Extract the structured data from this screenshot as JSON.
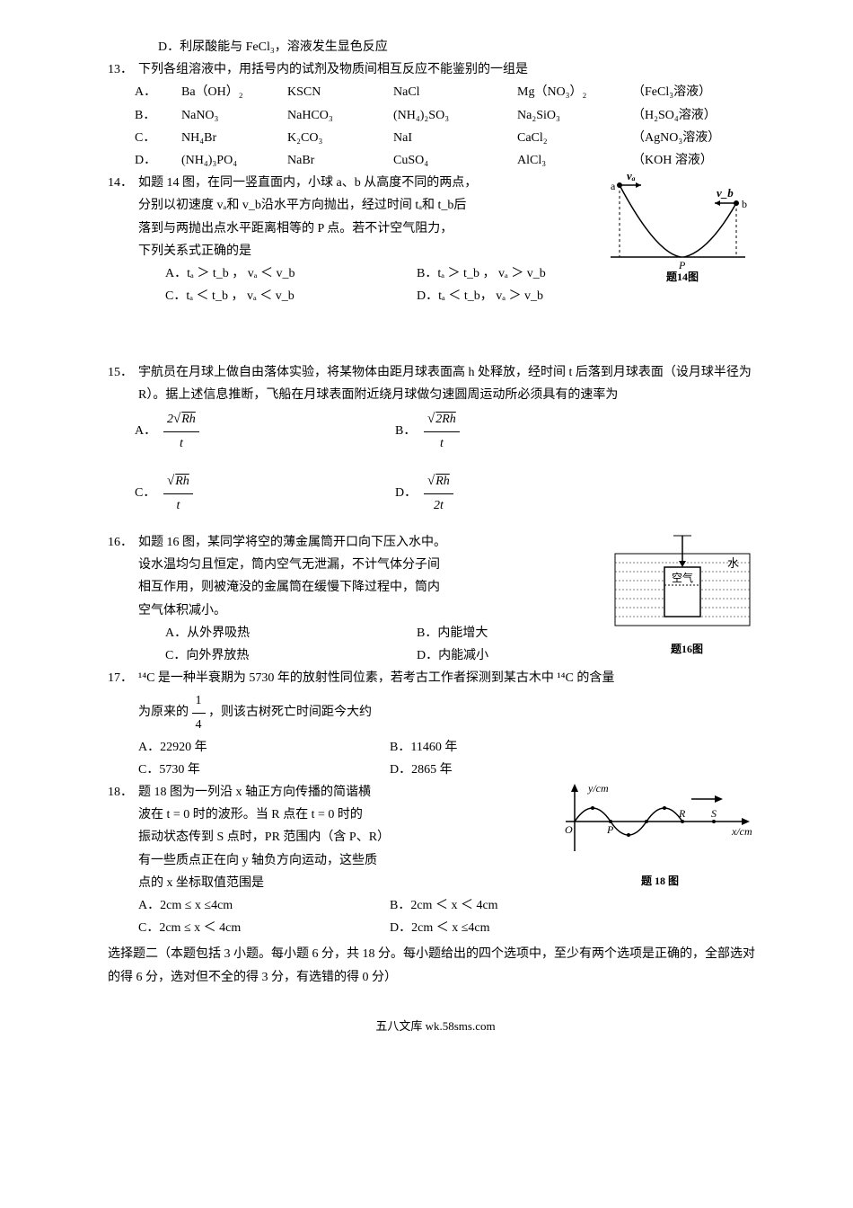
{
  "q12_D": "D．利尿酸能与 FeCl₃，溶液发生显色反应",
  "q13": {
    "num": "13．",
    "stem": "下列各组溶液中，用括号内的试剂及物质间相互反应不能鉴别的一组是",
    "rows": [
      {
        "label": "A．",
        "c1": "Ba（OH）₂",
        "c2": "KSCN",
        "c3": "NaCl",
        "c4": "Mg（NO₃）₂",
        "c5": "（FeCl₃溶液）"
      },
      {
        "label": "B．",
        "c1": "NaNO₃",
        "c2": "NaHCO₃",
        "c3": "(NH₄)₂SO₃",
        "c4": "Na₂SiO₃",
        "c5": "（H₂SO₄溶液）"
      },
      {
        "label": "C．",
        "c1": "NH₄Br",
        "c2": "K₂CO₃",
        "c3": "NaI",
        "c4": "CaCl₂",
        "c5": "（AgNO₃溶液）"
      },
      {
        "label": "D．",
        "c1": "(NH₄)₃PO₄",
        "c2": "NaBr",
        "c3": "CuSO₄",
        "c4": "AlCl₃",
        "c5": "（KOH 溶液）"
      }
    ]
  },
  "q14": {
    "num": "14．",
    "lines": [
      "如题 14 图，在同一竖直面内，小球 a、b 从高度不同的两点，",
      "分别以初速度 vₐ和 v_b沿水平方向抛出，经过时间 tₐ和 t_b后",
      "落到与两抛出点水平距离相等的 P 点。若不计空气阻力，",
      "下列关系式正确的是"
    ],
    "opts": {
      "A": "A．tₐ ＞ t_b ， vₐ ＜ v_b",
      "B": "B．tₐ ＞ t_b ， vₐ ＞ v_b",
      "C": "C．tₐ ＜ t_b ， vₐ ＜ v_b",
      "D": "D．tₐ ＜ t_b， vₐ ＞ v_b"
    },
    "fig_label": "题14图",
    "fig": {
      "va": "vₐ",
      "vb": "v_b",
      "a": "a",
      "b": "b",
      "P": "P"
    }
  },
  "q15": {
    "num": "15．",
    "stem": "宇航员在月球上做自由落体实验，将某物体由距月球表面高 h 处释放，经时间 t 后落到月球表面（设月球半径为 R）。据上述信息推断，飞船在月球表面附近绕月球做匀速圆周运动所必须具有的速率为",
    "opts": {
      "A": {
        "lbl": "A．",
        "num": "2√(Rh)",
        "den": "t",
        "num_html": "2<span class='root'>√</span><span class='sqrt'>Rh</span>"
      },
      "B": {
        "lbl": "B．",
        "num": "√(2Rh)",
        "den": "t",
        "num_html": "<span class='root'>√</span><span class='sqrt'>2Rh</span>"
      },
      "C": {
        "lbl": "C．",
        "num": "√(Rh)",
        "den": "t",
        "num_html": "<span class='root'>√</span><span class='sqrt'>Rh</span>"
      },
      "D": {
        "lbl": "D．",
        "num": "√(Rh)",
        "den": "2t",
        "num_html": "<span class='root'>√</span><span class='sqrt'>Rh</span>"
      }
    }
  },
  "q16": {
    "num": "16．",
    "lines": [
      "如题 16 图，某同学将空的薄金属筒开口向下压入水中。",
      "设水温均匀且恒定，筒内空气无泄漏，不计气体分子间",
      "相互作用，则被淹没的金属筒在缓慢下降过程中，筒内",
      "空气体积减小。"
    ],
    "opts": {
      "A": "A．从外界吸热",
      "B": "B．内能增大",
      "C": "C．向外界放热",
      "D": "D．内能减小"
    },
    "fig_label": "题16图",
    "fig": {
      "water": "水",
      "air": "空气"
    }
  },
  "q17": {
    "num": "17．",
    "stem1": "¹⁴C 是一种半衰期为 5730 年的放射性同位素，若考古工作者探测到某古木中 ¹⁴C 的含量",
    "stem2_pre": "为原来的",
    "frac": {
      "num": "1",
      "den": "4"
    },
    "stem2_post": "，则该古树死亡时间距今大约",
    "opts": {
      "A": "A．22920 年",
      "B": "B．11460 年",
      "C": "C．5730 年",
      "D": "D．2865 年"
    }
  },
  "q18": {
    "num": "18．",
    "lines": [
      "题 18 图为一列沿 x 轴正方向传播的简谐横",
      "波在 t = 0 时的波形。当 R 点在 t = 0 时的",
      "振动状态传到 S 点时，PR 范围内（含 P、R）",
      "有一些质点正在向 y 轴负方向运动，这些质",
      "点的 x 坐标取值范围是"
    ],
    "opts": {
      "A": "A．2cm ≤ x ≤4cm",
      "B": "B．2cm ＜ x ＜ 4cm",
      "C": "C．2cm ≤ x ＜ 4cm",
      "D": "D．2cm ＜ x ≤4cm"
    },
    "fig_label": "题 18 图",
    "fig": {
      "y": "y/cm",
      "x": "x/cm",
      "O": "O",
      "P": "P",
      "R": "R",
      "S": "S"
    }
  },
  "section2": "选择题二（本题包括 3 小题。每小题 6 分，共 18 分。每小题给出的四个选项中，至少有两个选项是正确的，全部选对的得 6 分，选对但不全的得 3 分，有选错的得 0 分）",
  "footer": "五八文库 wk.58sms.com"
}
